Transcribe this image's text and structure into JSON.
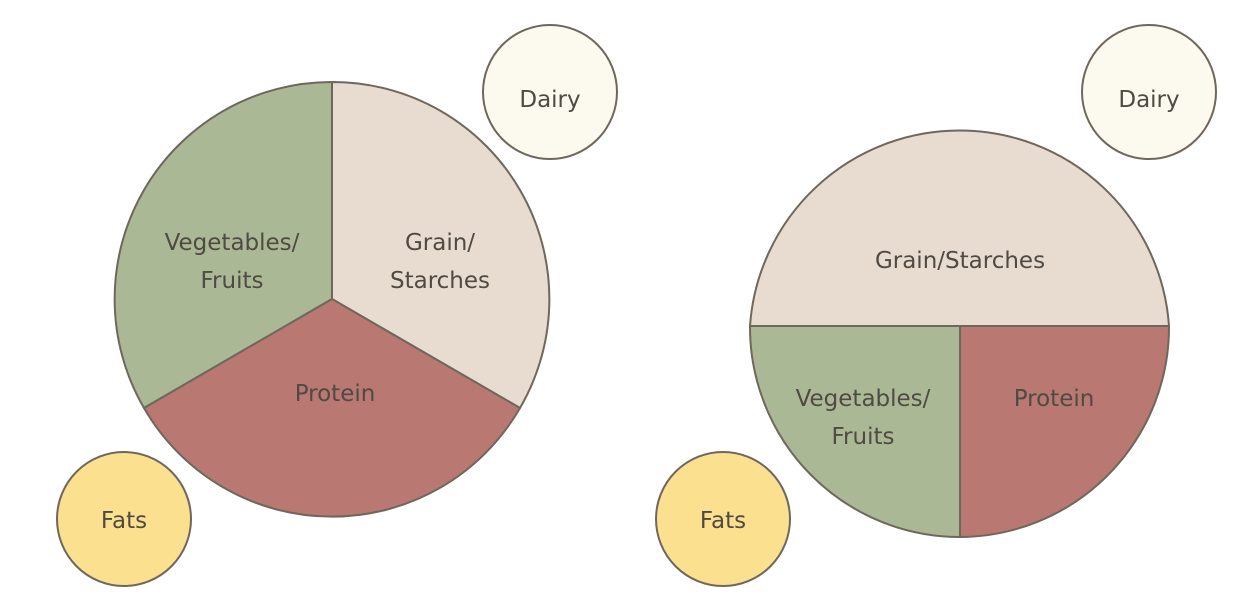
{
  "colors": {
    "vegetables": "#abb895",
    "grains": "#e8dbcf",
    "protein": "#b97872",
    "dairy": "#fcf9ee",
    "fats": "#fbe08f",
    "outline": "#6f675c",
    "text": "#4f4a43"
  },
  "plates": [
    {
      "name": "equal-thirds-plate",
      "vegetables_line1": "Vegetables/",
      "vegetables_line2": "Fruits",
      "grains_line1": "Grain/",
      "grains_line2": "Starches",
      "protein": "Protein",
      "dairy": "Dairy",
      "fats": "Fats"
    },
    {
      "name": "half-grain-plate",
      "vegetables_line1": "Vegetables/",
      "vegetables_line2": "Fruits",
      "grains": "Grain/Starches",
      "protein": "Protein",
      "dairy": "Dairy",
      "fats": "Fats"
    }
  ]
}
